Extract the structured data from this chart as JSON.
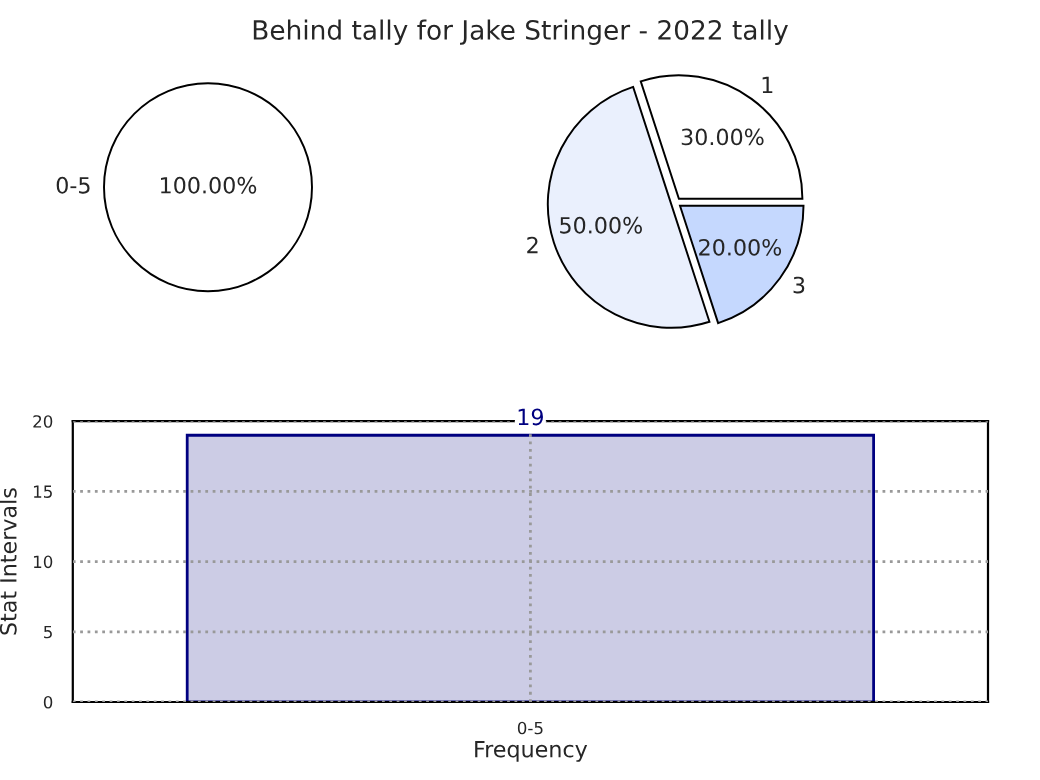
{
  "chart_data": [
    {
      "type": "pie",
      "title": "Behind tally for Jake Stringer - 2022 tally",
      "categories": [
        "0-5"
      ],
      "values": [
        100
      ],
      "colors": [
        "#ffffff"
      ],
      "value_labels": [
        "100.00%"
      ]
    },
    {
      "type": "pie",
      "categories": [
        "1",
        "2",
        "3"
      ],
      "values": [
        30,
        50,
        20
      ],
      "colors": [
        "#ffffff",
        "#eaf0fd",
        "#c5d8fe"
      ],
      "value_labels": [
        "30.00%",
        "50.00%",
        "20.00%"
      ]
    },
    {
      "type": "bar",
      "categories": [
        "0-5"
      ],
      "values": [
        19
      ],
      "color": "#ccccE5",
      "xlabel": "Frequency",
      "ylabel": "Stat Intervals",
      "ylim": [
        0,
        20
      ],
      "yticks": [
        0,
        5,
        10,
        15,
        20
      ],
      "grid": true,
      "data_labels": true
    }
  ]
}
